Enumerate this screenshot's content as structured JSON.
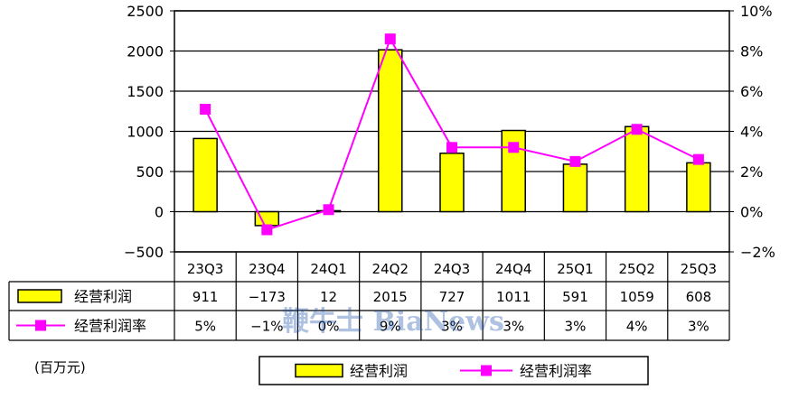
{
  "chart_data": {
    "type": "bar+line",
    "categories": [
      "23Q3",
      "23Q4",
      "24Q1",
      "24Q2",
      "24Q3",
      "24Q4",
      "25Q1",
      "25Q2",
      "25Q3"
    ],
    "series": [
      {
        "name": "经营利润",
        "type": "bar",
        "axis": "left",
        "values": [
          911,
          -173,
          12,
          2015,
          727,
          1011,
          591,
          1059,
          608
        ],
        "table_labels": [
          "911",
          "−173",
          "12",
          "2015",
          "727",
          "1011",
          "591",
          "1059",
          "608"
        ],
        "color": "#ffff00"
      },
      {
        "name": "经营利润率",
        "type": "line",
        "axis": "right",
        "values": [
          5.1,
          -0.9,
          0.1,
          8.6,
          3.2,
          3.2,
          2.5,
          4.1,
          2.6
        ],
        "table_labels": [
          "5%",
          "−1%",
          "0%",
          "9%",
          "3%",
          "3%",
          "3%",
          "4%",
          "3%"
        ],
        "color": "#ff00ff"
      }
    ],
    "y_left": {
      "min": -500,
      "max": 2500,
      "step": 500,
      "ticks": [
        "−500",
        "0",
        "500",
        "1000",
        "1500",
        "2000",
        "2500"
      ]
    },
    "y_right": {
      "min": -2,
      "max": 10,
      "step": 2,
      "ticks": [
        "−2%",
        "0%",
        "2%",
        "4%",
        "6%",
        "8%",
        "10%"
      ]
    },
    "unit_label": "(百万元)",
    "legend": {
      "position": "bottom",
      "items": [
        "经营利润",
        "经营利润率"
      ]
    },
    "watermark": "鞭牛士 BiaNews",
    "grid": true
  }
}
